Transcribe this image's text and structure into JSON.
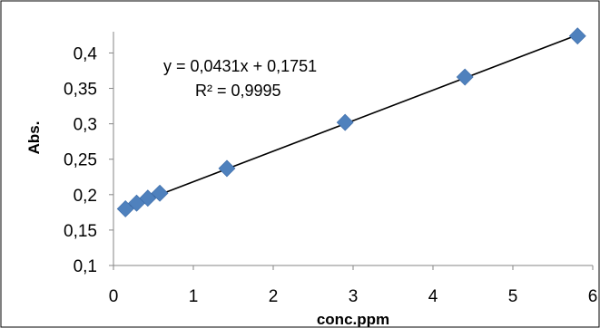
{
  "chart_data": {
    "type": "scatter",
    "xlabel": "conc.ppm",
    "ylabel": "Abs.",
    "xlim": [
      0,
      6
    ],
    "ylim": [
      0.1,
      0.43
    ],
    "x_ticks": [
      0,
      1,
      2,
      3,
      4,
      5,
      6
    ],
    "x_tick_labels": [
      "0",
      "1",
      "2",
      "3",
      "4",
      "5",
      "6"
    ],
    "y_ticks": [
      0.1,
      0.15,
      0.2,
      0.25,
      0.3,
      0.35,
      0.4
    ],
    "y_tick_labels": [
      "0,1",
      "0,15",
      "0,2",
      "0,25",
      "0,3",
      "0,35",
      "0,4"
    ],
    "series": [
      {
        "x": [
          0.15,
          0.29,
          0.43,
          0.58,
          1.42,
          2.9,
          4.4,
          5.81
        ],
        "y": [
          0.18,
          0.188,
          0.195,
          0.202,
          0.237,
          0.302,
          0.366,
          0.424
        ],
        "color": "#4f81bd",
        "marker": "diamond"
      }
    ],
    "trendline": {
      "slope": 0.0431,
      "intercept": 0.1751,
      "x_range": [
        0.15,
        5.81
      ],
      "color": "#000000"
    },
    "annotations": {
      "equation": "y = 0,0431x + 0,1751",
      "r_squared": "R² = 0,9995"
    },
    "grid": false
  }
}
